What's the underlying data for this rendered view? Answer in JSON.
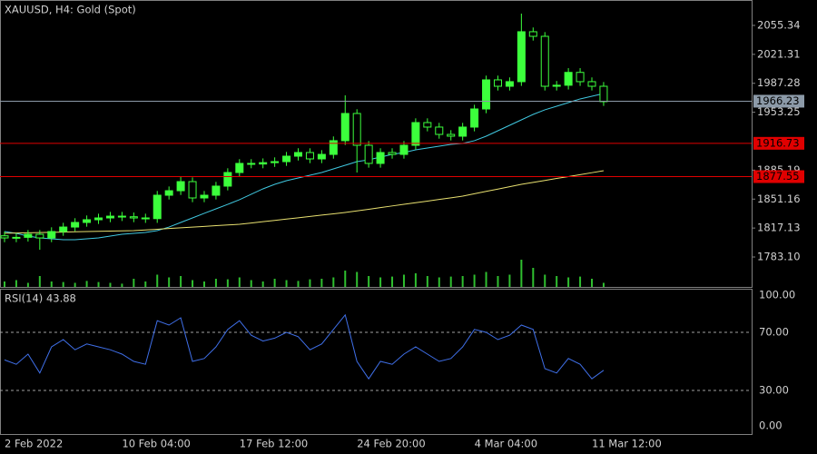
{
  "chart_data": [
    {
      "type": "candlestick",
      "title": "XAUUSD, H4:  Gold (Spot)",
      "color": "#3cff3c",
      "categories": [
        "2 Feb 2022",
        null,
        null,
        null,
        null,
        null,
        null,
        null,
        null,
        null,
        "10 Feb 04:00",
        null,
        null,
        null,
        null,
        null,
        null,
        null,
        null,
        null,
        "17 Feb 12:00",
        null,
        null,
        null,
        null,
        null,
        null,
        null,
        null,
        null,
        "24 Feb 20:00",
        null,
        null,
        null,
        null,
        null,
        null,
        null,
        null,
        null,
        "4 Mar 04:00",
        null,
        null,
        null,
        null,
        null,
        null,
        null,
        null,
        null,
        "11 Mar 12:00",
        null
      ],
      "open": [
        1808.0,
        1805.5,
        1806.2,
        1809.8,
        1805.5,
        1813.0,
        1818.3,
        1823.7,
        1826.9,
        1829.0,
        1831.1,
        1830.4,
        1829.0,
        1828.2,
        1855.7,
        1861.0,
        1871.7,
        1852.5,
        1855.7,
        1866.4,
        1882.4,
        1893.1,
        1892.4,
        1894.0,
        1895.2,
        1901.6,
        1905.9,
        1898.4,
        1903.7,
        1919.8,
        1951.8,
        1914.4,
        1893.1,
        1905.9,
        1903.7,
        1914.4,
        1941.1,
        1935.8,
        1927.2,
        1925.1,
        1935.8,
        1957.1,
        1991.3,
        1983.8,
        1989.2,
        2047.9,
        2042.5,
        1983.8,
        1985.0,
        2000.1,
        1989.2,
        1983.8
      ],
      "high": [
        1813.0,
        1811.2,
        1814.8,
        1814.8,
        1818.0,
        1823.3,
        1828.7,
        1831.9,
        1834.0,
        1836.1,
        1836.1,
        1835.4,
        1834.0,
        1860.7,
        1866.0,
        1878.0,
        1876.7,
        1860.7,
        1871.4,
        1887.4,
        1898.1,
        1898.1,
        1899.0,
        1900.2,
        1906.6,
        1910.9,
        1910.9,
        1908.7,
        1924.8,
        1973.1,
        1956.8,
        1919.4,
        1910.9,
        1910.9,
        1919.4,
        1946.1,
        1946.1,
        1940.8,
        1932.2,
        1940.8,
        1962.1,
        1996.3,
        1996.3,
        1994.2,
        2069.2,
        2052.9,
        2047.5,
        1990.0,
        2005.1,
        2005.1,
        1994.2,
        1988.8
      ],
      "low": [
        1800.5,
        1800.5,
        1801.2,
        1791.6,
        1800.5,
        1808.0,
        1813.3,
        1818.7,
        1821.9,
        1824.0,
        1825.4,
        1824.0,
        1823.2,
        1823.2,
        1850.7,
        1856.0,
        1847.5,
        1847.5,
        1850.7,
        1861.4,
        1877.4,
        1887.4,
        1887.4,
        1889.0,
        1890.2,
        1896.6,
        1893.4,
        1893.4,
        1898.7,
        1914.8,
        1882.4,
        1888.1,
        1888.1,
        1898.7,
        1898.7,
        1909.4,
        1930.8,
        1922.2,
        1920.1,
        1920.1,
        1930.8,
        1952.1,
        1978.8,
        1978.8,
        1984.2,
        2037.5,
        1978.8,
        1978.8,
        1980.0,
        1984.2,
        1978.8,
        1960.7
      ],
      "close": [
        1805.5,
        1806.2,
        1809.8,
        1805.5,
        1813.0,
        1818.3,
        1823.7,
        1826.9,
        1829.0,
        1831.1,
        1830.4,
        1829.0,
        1828.2,
        1855.7,
        1861.0,
        1871.7,
        1852.5,
        1855.7,
        1866.4,
        1882.4,
        1893.1,
        1892.4,
        1894.0,
        1895.2,
        1901.6,
        1905.9,
        1898.4,
        1903.7,
        1919.8,
        1951.8,
        1914.4,
        1893.1,
        1905.9,
        1903.7,
        1914.4,
        1941.1,
        1935.8,
        1927.2,
        1925.1,
        1935.8,
        1957.1,
        1991.3,
        1983.8,
        1989.2,
        2047.9,
        2042.5,
        1983.8,
        1985.0,
        2000.1,
        1989.2,
        1983.8,
        1965.7
      ],
      "lines": [
        {
          "color": "#40c8e0",
          "values": [
            1813.0,
            1810.9,
            1807.7,
            1805.5,
            1804.5,
            1803.4,
            1803.4,
            1804.5,
            1805.5,
            1807.7,
            1809.8,
            1810.9,
            1811.9,
            1814.1,
            1818.3,
            1823.7,
            1829.0,
            1834.4,
            1839.7,
            1845.0,
            1850.4,
            1856.8,
            1863.2,
            1868.5,
            1872.8,
            1876.0,
            1879.2,
            1882.4,
            1886.7,
            1890.9,
            1895.2,
            1897.3,
            1900.5,
            1903.7,
            1905.9,
            1909.1,
            1911.2,
            1913.4,
            1915.5,
            1916.6,
            1919.8,
            1925.1,
            1931.5,
            1937.9,
            1944.3,
            1950.7,
            1956.1,
            1960.3,
            1964.6,
            1968.9,
            1972.1,
            1975.3
          ]
        },
        {
          "color": "#e8e070",
          "values": [
            1811.0,
            1811.3,
            1811.6,
            1811.8,
            1812.1,
            1812.4,
            1812.7,
            1813.0,
            1813.3,
            1813.5,
            1813.8,
            1814.1,
            1814.9,
            1815.7,
            1816.6,
            1817.4,
            1818.2,
            1819.0,
            1819.9,
            1820.7,
            1821.5,
            1823.0,
            1824.6,
            1826.1,
            1827.7,
            1829.2,
            1830.7,
            1832.3,
            1833.8,
            1835.4,
            1837.3,
            1839.2,
            1841.2,
            1843.1,
            1845.0,
            1846.9,
            1848.8,
            1850.8,
            1852.7,
            1854.6,
            1857.4,
            1860.2,
            1862.9,
            1865.7,
            1868.5,
            1870.8,
            1873.1,
            1875.4,
            1877.6,
            1879.9,
            1882.2,
            1884.5
          ]
        }
      ],
      "volume": [
        20,
        25,
        15,
        40,
        20,
        18,
        15,
        22,
        18,
        15,
        12,
        30,
        20,
        45,
        35,
        40,
        25,
        20,
        30,
        28,
        35,
        25,
        20,
        30,
        25,
        22,
        28,
        30,
        35,
        60,
        55,
        40,
        35,
        38,
        45,
        50,
        40,
        35,
        38,
        40,
        45,
        55,
        40,
        45,
        100,
        70,
        45,
        40,
        35,
        38,
        30,
        15
      ],
      "volume_color": "#2fbf2f",
      "ylim": [
        1747.9,
        2085.2
      ],
      "yticks": [
        2055.34,
        2021.31,
        1987.28,
        1953.25,
        1885.19,
        1851.16,
        1817.13,
        {
          "value": 1783.1,
          "label": "1783.10"
        }
      ],
      "levels": [
        {
          "value": 1966.23,
          "color": "#8c9aa8"
        },
        {
          "value": 1916.73,
          "color": "#e00000"
        },
        {
          "value": 1877.55,
          "color": "#e00000"
        }
      ]
    },
    {
      "type": "line",
      "title": "RSI(14) 43.88",
      "color": "#3f6fe8",
      "values": [
        51,
        48,
        55,
        42,
        60,
        65,
        58,
        62,
        60,
        58,
        55,
        50,
        48,
        78,
        75,
        80,
        50,
        52,
        60,
        72,
        78,
        68,
        64,
        66,
        70,
        67,
        58,
        62,
        72,
        82,
        50,
        38,
        50,
        48,
        55,
        60,
        55,
        50,
        52,
        60,
        72,
        70,
        65,
        68,
        75,
        72,
        45,
        42,
        52,
        48,
        38,
        43.88
      ],
      "ylim": [
        0,
        100
      ],
      "yticks": [
        {
          "value": 100,
          "label": "100.00"
        },
        {
          "value": 70,
          "label": "70.00"
        },
        {
          "value": 30,
          "label": "30.00"
        },
        {
          "value": 0,
          "label": "0.00"
        }
      ]
    }
  ]
}
